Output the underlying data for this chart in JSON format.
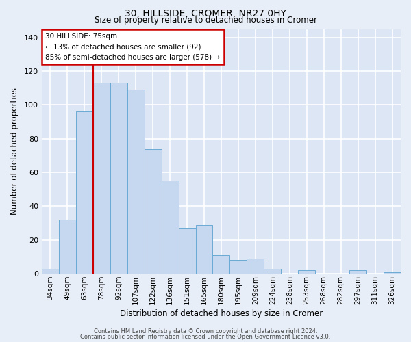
{
  "title": "30, HILLSIDE, CROMER, NR27 0HY",
  "subtitle": "Size of property relative to detached houses in Cromer",
  "xlabel": "Distribution of detached houses by size in Cromer",
  "ylabel": "Number of detached properties",
  "categories": [
    "34sqm",
    "49sqm",
    "63sqm",
    "78sqm",
    "92sqm",
    "107sqm",
    "122sqm",
    "136sqm",
    "151sqm",
    "165sqm",
    "180sqm",
    "195sqm",
    "209sqm",
    "224sqm",
    "238sqm",
    "253sqm",
    "268sqm",
    "282sqm",
    "297sqm",
    "311sqm",
    "326sqm"
  ],
  "values": [
    3,
    32,
    96,
    113,
    113,
    109,
    74,
    55,
    27,
    29,
    11,
    8,
    9,
    3,
    0,
    2,
    0,
    0,
    2,
    0,
    1
  ],
  "bar_color": "#c5d8f0",
  "bar_edge_color": "#6aaad4",
  "marker_label": "30 HILLSIDE: 75sqm",
  "annotation_line1": "← 13% of detached houses are smaller (92)",
  "annotation_line2": "85% of semi-detached houses are larger (578) →",
  "annotation_box_color": "#ffffff",
  "annotation_box_edge": "#cc0000",
  "red_line_color": "#cc0000",
  "red_line_x": 2.5,
  "ylim": [
    0,
    145
  ],
  "yticks": [
    0,
    20,
    40,
    60,
    80,
    100,
    120,
    140
  ],
  "footer1": "Contains HM Land Registry data © Crown copyright and database right 2024.",
  "footer2": "Contains public sector information licensed under the Open Government Licence v3.0.",
  "bg_color": "#e8eef7",
  "plot_bg_color": "#dce6f5"
}
